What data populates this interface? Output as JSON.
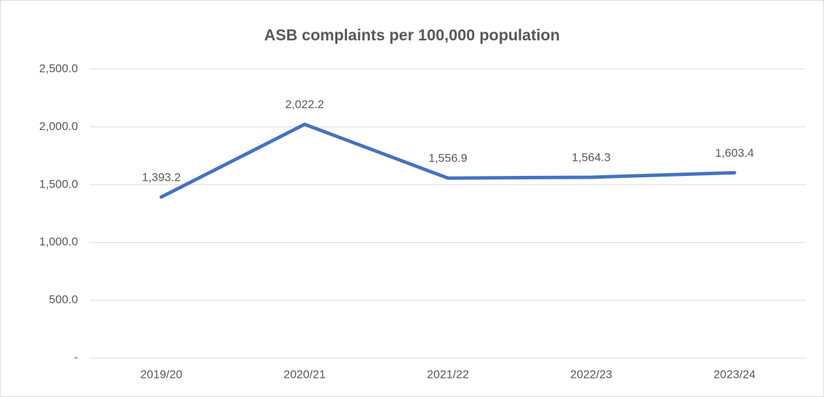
{
  "chart_data": {
    "type": "line",
    "title": "ASB complaints per 100,000 population",
    "categories": [
      "2019/20",
      "2020/21",
      "2021/22",
      "2022/23",
      "2023/24"
    ],
    "values": [
      1393.2,
      2022.2,
      1556.9,
      1564.3,
      1603.4
    ],
    "value_labels": [
      "1,393.2",
      "2,022.2",
      "1,556.9",
      "1,564.3",
      "1,603.4"
    ],
    "color": "#4472c4",
    "ylim": [
      0,
      2500
    ],
    "yticks": [
      {
        "value": 0,
        "label": "-"
      },
      {
        "value": 500,
        "label": "500.0"
      },
      {
        "value": 1000,
        "label": "1,000.0"
      },
      {
        "value": 1500,
        "label": "1,500.0"
      },
      {
        "value": 2000,
        "label": "2,000.0"
      },
      {
        "value": 2500,
        "label": "2,500.0"
      }
    ],
    "grid": true
  }
}
